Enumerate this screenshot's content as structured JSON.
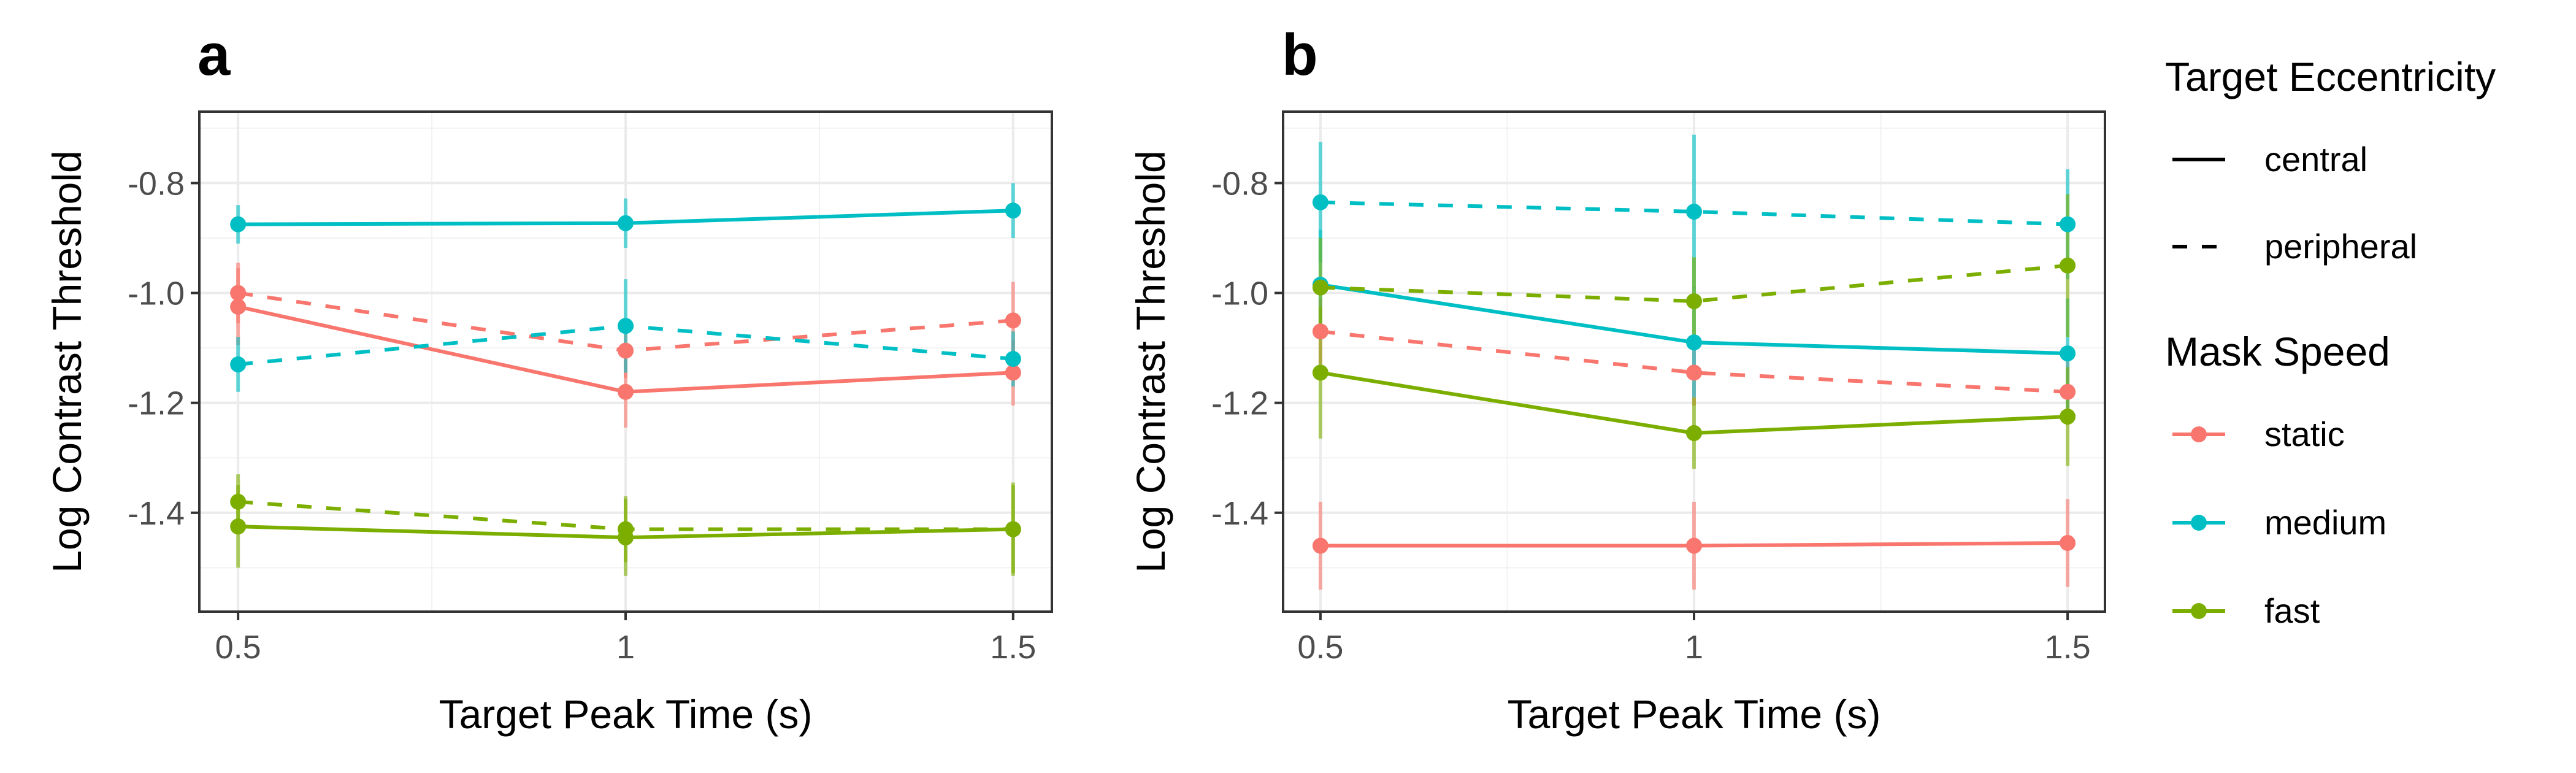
{
  "chart_data": [
    {
      "panel": "a",
      "type": "line",
      "xlabel": "Target Peak Time (s)",
      "ylabel": "Log Contrast Threshold",
      "x": [
        0.5,
        1,
        1.5
      ],
      "x_tick_labels": [
        "0.5",
        "1",
        "1.5"
      ],
      "y_ticks": [
        -1.4,
        -1.2,
        -1.0,
        -0.8
      ],
      "y_tick_labels": [
        "-1.4",
        "-1.2",
        "-1.0",
        "-0.8"
      ],
      "xlim": [
        0.45,
        1.55
      ],
      "ylim": [
        -1.58,
        -0.67
      ],
      "grid": true,
      "series": [
        {
          "speed": "static",
          "eccentricity": "central",
          "y": [
            -1.025,
            -1.18,
            -1.145
          ],
          "err": [
            0.07,
            0.065,
            0.06
          ]
        },
        {
          "speed": "static",
          "eccentricity": "peripheral",
          "y": [
            -1.0,
            -1.105,
            -1.05
          ],
          "err": [
            0.055,
            0.05,
            0.07
          ]
        },
        {
          "speed": "medium",
          "eccentricity": "central",
          "y": [
            -0.875,
            -0.873,
            -0.85
          ],
          "err": [
            0.035,
            0.045,
            0.05
          ]
        },
        {
          "speed": "medium",
          "eccentricity": "peripheral",
          "y": [
            -1.13,
            -1.06,
            -1.12
          ],
          "err": [
            0.05,
            0.085,
            0.05
          ]
        },
        {
          "speed": "fast",
          "eccentricity": "central",
          "y": [
            -1.425,
            -1.445,
            -1.43
          ],
          "err": [
            0.075,
            0.07,
            0.085
          ]
        },
        {
          "speed": "fast",
          "eccentricity": "peripheral",
          "y": [
            -1.38,
            -1.43,
            -1.43
          ],
          "err": [
            0.05,
            0.06,
            0.08
          ]
        }
      ]
    },
    {
      "panel": "b",
      "type": "line",
      "xlabel": "Target Peak Time (s)",
      "ylabel": "Log Contrast Threshold",
      "x": [
        0.5,
        1,
        1.5
      ],
      "x_tick_labels": [
        "0.5",
        "1",
        "1.5"
      ],
      "y_ticks": [
        -1.4,
        -1.2,
        -1.0,
        -0.8
      ],
      "y_tick_labels": [
        "-1.4",
        "-1.2",
        "-1.0",
        "-0.8"
      ],
      "xlim": [
        0.45,
        1.55
      ],
      "ylim": [
        -1.58,
        -0.67
      ],
      "grid": true,
      "series": [
        {
          "speed": "static",
          "eccentricity": "central",
          "y": [
            -1.46,
            -1.46,
            -1.455
          ],
          "err": [
            0.08,
            0.08,
            0.08
          ]
        },
        {
          "speed": "static",
          "eccentricity": "peripheral",
          "y": [
            -1.07,
            -1.145,
            -1.18
          ],
          "err": [
            0.06,
            0.06,
            0.06
          ]
        },
        {
          "speed": "medium",
          "eccentricity": "central",
          "y": [
            -0.985,
            -1.09,
            -1.11
          ],
          "err": [
            0.1,
            0.1,
            0.1
          ]
        },
        {
          "speed": "medium",
          "eccentricity": "peripheral",
          "y": [
            -0.835,
            -0.852,
            -0.875
          ],
          "err": [
            0.11,
            0.14,
            0.1
          ]
        },
        {
          "speed": "fast",
          "eccentricity": "central",
          "y": [
            -1.145,
            -1.255,
            -1.225
          ],
          "err": [
            0.12,
            0.065,
            0.09
          ]
        },
        {
          "speed": "fast",
          "eccentricity": "peripheral",
          "y": [
            -0.99,
            -1.015,
            -0.95
          ],
          "err": [
            0.09,
            0.08,
            0.13
          ]
        }
      ]
    }
  ],
  "legend": {
    "placement": "right",
    "eccentricity_title": "Target Eccentricity",
    "eccentricity_items": [
      {
        "label": "central",
        "dash": "solid"
      },
      {
        "label": "peripheral",
        "dash": "dashed"
      }
    ],
    "speed_title": "Mask Speed",
    "speed_items": [
      {
        "key": "static",
        "label": "static",
        "color": "#F8766D"
      },
      {
        "key": "medium",
        "label": "medium",
        "color": "#00BFC4"
      },
      {
        "key": "fast",
        "label": "fast",
        "color": "#7CAE00"
      }
    ]
  }
}
